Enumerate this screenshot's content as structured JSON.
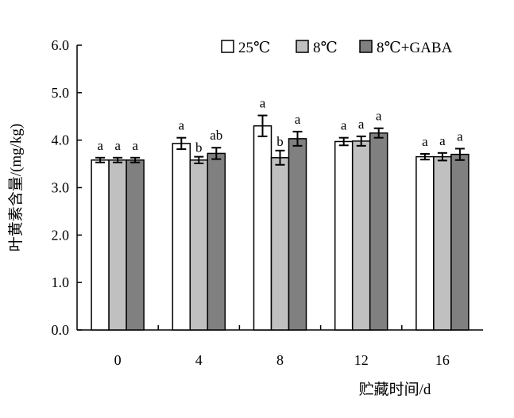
{
  "chart_data": {
    "type": "bar",
    "title": "",
    "xlabel": "贮藏时间/d",
    "ylabel": "叶黄素含量/(mg/kg)",
    "categories": [
      "0",
      "4",
      "8",
      "12",
      "16"
    ],
    "ylim": [
      0,
      6
    ],
    "yticks": [
      "0.0",
      "1.0",
      "2.0",
      "3.0",
      "4.0",
      "5.0",
      "6.0"
    ],
    "legend_position": "top-right",
    "grid": false,
    "series": [
      {
        "name": "25℃",
        "color": "#ffffff",
        "values": [
          3.58,
          3.93,
          4.3,
          3.97,
          3.65
        ],
        "errors": [
          0.05,
          0.12,
          0.22,
          0.08,
          0.06
        ],
        "labels": [
          "a",
          "a",
          "a",
          "a",
          "a"
        ]
      },
      {
        "name": "8℃",
        "color": "#c0c0c0",
        "values": [
          3.58,
          3.58,
          3.63,
          3.98,
          3.65
        ],
        "errors": [
          0.05,
          0.07,
          0.15,
          0.1,
          0.08
        ],
        "labels": [
          "a",
          "b",
          "b",
          "a",
          "a"
        ]
      },
      {
        "name": "8℃+GABA",
        "color": "#808080",
        "values": [
          3.58,
          3.72,
          4.03,
          4.15,
          3.7
        ],
        "errors": [
          0.05,
          0.12,
          0.15,
          0.1,
          0.12
        ],
        "labels": [
          "a",
          "ab",
          "a",
          "a",
          "a"
        ]
      }
    ]
  }
}
